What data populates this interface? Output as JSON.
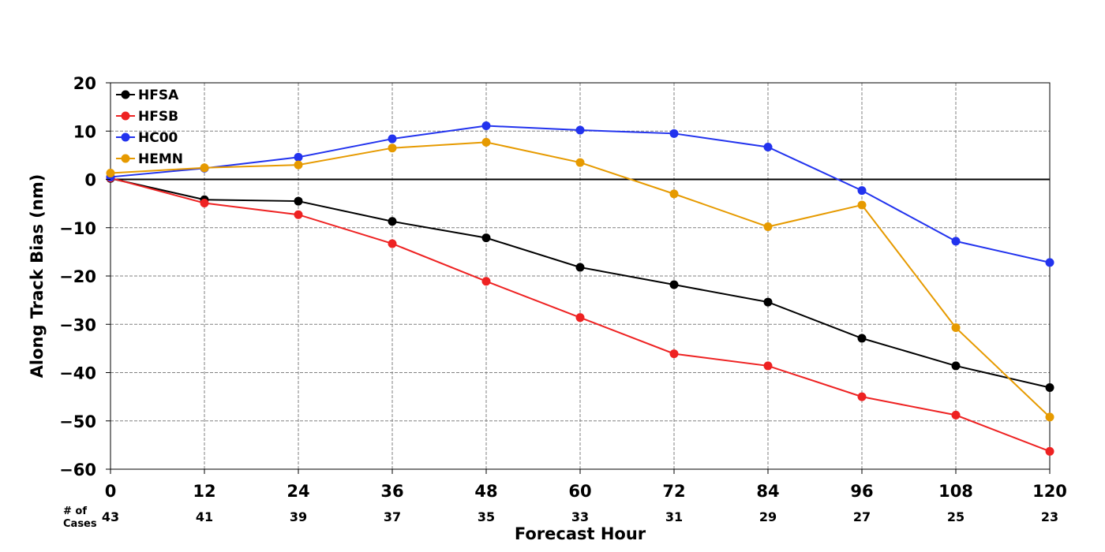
{
  "chart_data": {
    "type": "line",
    "xlabel": "Forecast Hour",
    "ylabel": "Along Track Bias (nm)",
    "x": [
      0,
      12,
      24,
      36,
      48,
      60,
      72,
      84,
      96,
      108,
      120
    ],
    "x_tick_labels": [
      "0",
      "12",
      "24",
      "36",
      "48",
      "60",
      "72",
      "84",
      "96",
      "108",
      "120"
    ],
    "xlim": [
      0,
      120
    ],
    "ylim": [
      -60,
      20
    ],
    "y_ticks": [
      20,
      10,
      0,
      -10,
      -20,
      -30,
      -40,
      -50,
      -60
    ],
    "y_tick_labels": [
      "20",
      "10",
      "0",
      "−10",
      "−20",
      "−30",
      "−40",
      "−50",
      "−60"
    ],
    "grid": true,
    "zero_line": true,
    "legend_position": "top-left",
    "cases_label_line1": "# of",
    "cases_label_line2": "Cases",
    "cases": [
      "43",
      "41",
      "39",
      "37",
      "35",
      "33",
      "31",
      "29",
      "27",
      "25",
      "23"
    ],
    "series": [
      {
        "name": "HFSA",
        "color": "#000000",
        "values": [
          0.2,
          -4.2,
          -4.5,
          -8.7,
          -12.1,
          -18.2,
          -21.8,
          -25.4,
          -32.9,
          -38.6,
          -43.1
        ]
      },
      {
        "name": "HFSB",
        "color": "#ee2222",
        "values": [
          0.3,
          -4.9,
          -7.3,
          -13.3,
          -21.1,
          -28.6,
          -36.1,
          -38.6,
          -45.0,
          -48.8,
          -56.3
        ]
      },
      {
        "name": "HC00",
        "color": "#2233ee",
        "values": [
          0.5,
          2.3,
          4.6,
          8.4,
          11.1,
          10.2,
          9.5,
          6.7,
          -2.3,
          -12.8,
          -17.2
        ]
      },
      {
        "name": "HEMN",
        "color": "#e69a00",
        "values": [
          1.3,
          2.4,
          3.0,
          6.5,
          7.7,
          3.5,
          -3.0,
          -9.8,
          -5.3,
          -30.7,
          -49.2
        ]
      }
    ]
  }
}
